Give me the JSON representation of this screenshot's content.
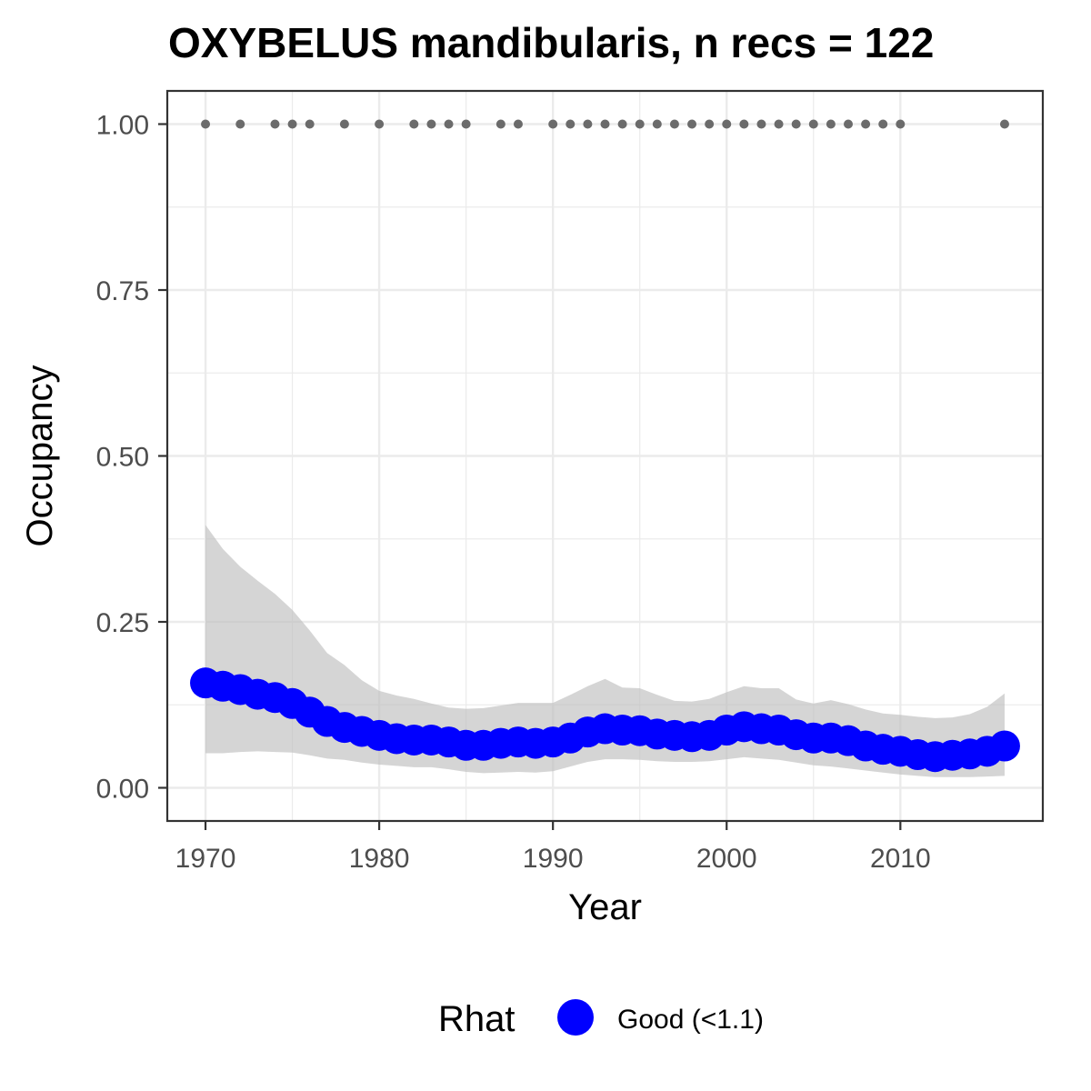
{
  "chart_data": {
    "type": "line",
    "title": "OXYBELUS mandibularis, n recs = 122",
    "xlabel": "Year",
    "ylabel": "Occupancy",
    "xlim": [
      1967.8,
      2018.2
    ],
    "ylim": [
      -0.05,
      1.05
    ],
    "x_ticks": [
      1970,
      1980,
      1990,
      2000,
      2010
    ],
    "x_tick_labels": [
      "1970",
      "1980",
      "1990",
      "2000",
      "2010"
    ],
    "y_ticks": [
      0,
      0.25,
      0.5,
      0.75,
      1
    ],
    "y_tick_labels": [
      "0.00",
      "0.25",
      "0.50",
      "0.75",
      "1.00"
    ],
    "grid": true,
    "legend": {
      "position": "bottom",
      "title": "Rhat",
      "label": "Good (<1.1)",
      "color": "#0000ff"
    },
    "colors": {
      "series": "#0000ff",
      "ribbon": "#bfbfbf",
      "records": "#6b6b6b",
      "grid": "#ebebeb",
      "border": "#333333"
    },
    "series": [
      {
        "name": "Occupancy",
        "x": [
          1970,
          1971,
          1972,
          1973,
          1974,
          1975,
          1976,
          1977,
          1978,
          1979,
          1980,
          1981,
          1982,
          1983,
          1984,
          1985,
          1986,
          1987,
          1988,
          1989,
          1990,
          1991,
          1992,
          1993,
          1994,
          1995,
          1996,
          1997,
          1998,
          1999,
          2000,
          2001,
          2002,
          2003,
          2004,
          2005,
          2006,
          2007,
          2008,
          2009,
          2010,
          2011,
          2012,
          2013,
          2014,
          2015,
          2016
        ],
        "values": [
          0.158,
          0.153,
          0.148,
          0.141,
          0.136,
          0.127,
          0.114,
          0.1,
          0.091,
          0.085,
          0.079,
          0.074,
          0.072,
          0.072,
          0.069,
          0.064,
          0.064,
          0.067,
          0.069,
          0.067,
          0.069,
          0.075,
          0.084,
          0.089,
          0.087,
          0.086,
          0.081,
          0.079,
          0.077,
          0.079,
          0.087,
          0.092,
          0.089,
          0.087,
          0.08,
          0.075,
          0.075,
          0.071,
          0.063,
          0.058,
          0.055,
          0.05,
          0.047,
          0.049,
          0.051,
          0.055,
          0.063
        ],
        "lower": [
          0.052,
          0.052,
          0.054,
          0.055,
          0.054,
          0.053,
          0.049,
          0.044,
          0.042,
          0.038,
          0.035,
          0.033,
          0.031,
          0.031,
          0.028,
          0.024,
          0.022,
          0.023,
          0.024,
          0.023,
          0.025,
          0.032,
          0.039,
          0.043,
          0.043,
          0.042,
          0.04,
          0.039,
          0.039,
          0.04,
          0.043,
          0.046,
          0.044,
          0.042,
          0.038,
          0.034,
          0.032,
          0.029,
          0.026,
          0.023,
          0.02,
          0.018,
          0.016,
          0.016,
          0.016,
          0.017,
          0.018
        ],
        "upper": [
          0.396,
          0.36,
          0.333,
          0.312,
          0.292,
          0.268,
          0.237,
          0.203,
          0.185,
          0.162,
          0.146,
          0.139,
          0.134,
          0.127,
          0.121,
          0.119,
          0.12,
          0.124,
          0.128,
          0.128,
          0.128,
          0.14,
          0.153,
          0.164,
          0.151,
          0.15,
          0.14,
          0.131,
          0.13,
          0.134,
          0.144,
          0.153,
          0.15,
          0.15,
          0.133,
          0.127,
          0.132,
          0.126,
          0.118,
          0.112,
          0.11,
          0.107,
          0.105,
          0.106,
          0.111,
          0.122,
          0.142
        ]
      },
      {
        "name": "Records",
        "x": [
          1970,
          1972,
          1974,
          1975,
          1976,
          1978,
          1980,
          1982,
          1983,
          1984,
          1985,
          1987,
          1988,
          1990,
          1991,
          1992,
          1993,
          1994,
          1995,
          1996,
          1997,
          1998,
          1999,
          2000,
          2001,
          2002,
          2003,
          2004,
          2005,
          2006,
          2007,
          2008,
          2009,
          2010,
          2016
        ],
        "values": [
          1,
          1,
          1,
          1,
          1,
          1,
          1,
          1,
          1,
          1,
          1,
          1,
          1,
          1,
          1,
          1,
          1,
          1,
          1,
          1,
          1,
          1,
          1,
          1,
          1,
          1,
          1,
          1,
          1,
          1,
          1,
          1,
          1,
          1,
          1
        ]
      }
    ]
  }
}
